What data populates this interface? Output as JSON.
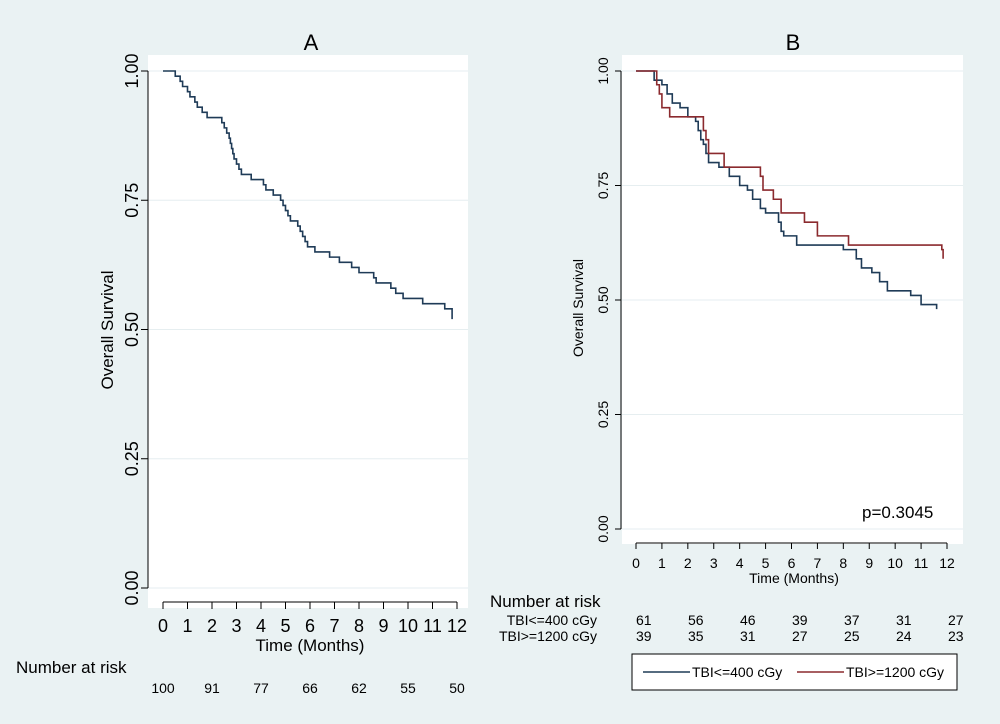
{
  "chart_data": [
    {
      "panel": "A",
      "type": "line",
      "step": true,
      "title": "A",
      "xlabel": "Time (Months)",
      "ylabel": "Overall Survival",
      "xlim": [
        0,
        12
      ],
      "ylim": [
        0,
        1
      ],
      "xticks": [
        "0",
        "1",
        "2",
        "3",
        "4",
        "5",
        "6",
        "7",
        "8",
        "9",
        "10",
        "11",
        "12"
      ],
      "yticks": [
        "0.00",
        "0.25",
        "0.50",
        "0.75",
        "1.00"
      ],
      "grid": "horizontal",
      "series": [
        {
          "color": "#1f3b57",
          "points": [
            [
              0,
              1.0
            ],
            [
              0.4,
              1.0
            ],
            [
              0.5,
              0.99
            ],
            [
              0.7,
              0.98
            ],
            [
              0.8,
              0.97
            ],
            [
              1.0,
              0.96
            ],
            [
              1.1,
              0.95
            ],
            [
              1.3,
              0.94
            ],
            [
              1.4,
              0.93
            ],
            [
              1.6,
              0.92
            ],
            [
              1.8,
              0.91
            ],
            [
              2.3,
              0.91
            ],
            [
              2.4,
              0.9
            ],
            [
              2.5,
              0.89
            ],
            [
              2.6,
              0.88
            ],
            [
              2.7,
              0.87
            ],
            [
              2.75,
              0.86
            ],
            [
              2.8,
              0.85
            ],
            [
              2.85,
              0.84
            ],
            [
              2.9,
              0.83
            ],
            [
              3.0,
              0.82
            ],
            [
              3.1,
              0.81
            ],
            [
              3.2,
              0.8
            ],
            [
              3.6,
              0.79
            ],
            [
              4.1,
              0.78
            ],
            [
              4.2,
              0.77
            ],
            [
              4.5,
              0.76
            ],
            [
              4.8,
              0.75
            ],
            [
              4.9,
              0.74
            ],
            [
              5.0,
              0.73
            ],
            [
              5.1,
              0.72
            ],
            [
              5.2,
              0.71
            ],
            [
              5.5,
              0.7
            ],
            [
              5.6,
              0.69
            ],
            [
              5.7,
              0.68
            ],
            [
              5.8,
              0.67
            ],
            [
              5.9,
              0.66
            ],
            [
              6.2,
              0.65
            ],
            [
              6.8,
              0.64
            ],
            [
              7.2,
              0.63
            ],
            [
              7.7,
              0.62
            ],
            [
              8.0,
              0.61
            ],
            [
              8.6,
              0.6
            ],
            [
              8.7,
              0.59
            ],
            [
              9.3,
              0.58
            ],
            [
              9.5,
              0.57
            ],
            [
              9.8,
              0.56
            ],
            [
              10.6,
              0.55
            ],
            [
              11.5,
              0.54
            ],
            [
              11.8,
              0.52
            ]
          ]
        }
      ],
      "risk_table": {
        "title": "Number at risk",
        "rows": [
          {
            "label": "",
            "values": [
              "100",
              "91",
              "77",
              "66",
              "62",
              "55",
              "50"
            ]
          }
        ]
      }
    },
    {
      "panel": "B",
      "type": "line",
      "step": true,
      "title": "B",
      "xlabel": "Time (Months)",
      "ylabel": "Overall Survival",
      "xlim": [
        0,
        12
      ],
      "ylim": [
        0,
        1
      ],
      "xticks": [
        "0",
        "1",
        "2",
        "3",
        "4",
        "5",
        "6",
        "7",
        "8",
        "9",
        "10",
        "11",
        "12"
      ],
      "yticks": [
        "0.00",
        "0.25",
        "0.50",
        "0.75",
        "1.00"
      ],
      "grid": "horizontal",
      "annotation": "p=0.3045",
      "legend_position": "bottom",
      "series": [
        {
          "name": "TBI<=400 cGy",
          "color": "#1f3b57",
          "points": [
            [
              0,
              1.0
            ],
            [
              0.6,
              1.0
            ],
            [
              0.7,
              0.98
            ],
            [
              1.0,
              0.97
            ],
            [
              1.2,
              0.95
            ],
            [
              1.4,
              0.93
            ],
            [
              1.7,
              0.92
            ],
            [
              2.0,
              0.9
            ],
            [
              2.3,
              0.89
            ],
            [
              2.4,
              0.87
            ],
            [
              2.5,
              0.85
            ],
            [
              2.6,
              0.84
            ],
            [
              2.7,
              0.82
            ],
            [
              2.8,
              0.8
            ],
            [
              3.2,
              0.79
            ],
            [
              3.6,
              0.77
            ],
            [
              4.0,
              0.75
            ],
            [
              4.3,
              0.74
            ],
            [
              4.5,
              0.72
            ],
            [
              4.8,
              0.7
            ],
            [
              5.0,
              0.69
            ],
            [
              5.5,
              0.67
            ],
            [
              5.6,
              0.65
            ],
            [
              5.7,
              0.64
            ],
            [
              6.2,
              0.62
            ],
            [
              8.0,
              0.61
            ],
            [
              8.5,
              0.59
            ],
            [
              8.7,
              0.57
            ],
            [
              9.1,
              0.56
            ],
            [
              9.4,
              0.54
            ],
            [
              9.7,
              0.52
            ],
            [
              10.6,
              0.51
            ],
            [
              11.0,
              0.49
            ],
            [
              11.6,
              0.48
            ]
          ]
        },
        {
          "name": "TBI>=1200 cGy",
          "color": "#8b2a2e",
          "points": [
            [
              0,
              1.0
            ],
            [
              0.7,
              1.0
            ],
            [
              0.8,
              0.97
            ],
            [
              0.9,
              0.95
            ],
            [
              1.0,
              0.92
            ],
            [
              1.3,
              0.9
            ],
            [
              2.6,
              0.87
            ],
            [
              2.7,
              0.85
            ],
            [
              2.8,
              0.82
            ],
            [
              3.4,
              0.79
            ],
            [
              4.8,
              0.77
            ],
            [
              4.9,
              0.74
            ],
            [
              5.3,
              0.72
            ],
            [
              5.6,
              0.69
            ],
            [
              6.5,
              0.67
            ],
            [
              7.0,
              0.64
            ],
            [
              8.2,
              0.62
            ],
            [
              11.8,
              0.61
            ],
            [
              11.85,
              0.59
            ]
          ]
        }
      ],
      "risk_table": {
        "title": "Number at risk",
        "rows": [
          {
            "label": "TBI<=400 cGy",
            "values": [
              "61",
              "56",
              "46",
              "39",
              "37",
              "31",
              "27"
            ]
          },
          {
            "label": "TBI>=1200 cGy",
            "values": [
              "39",
              "35",
              "31",
              "27",
              "25",
              "24",
              "23"
            ]
          }
        ]
      }
    }
  ]
}
